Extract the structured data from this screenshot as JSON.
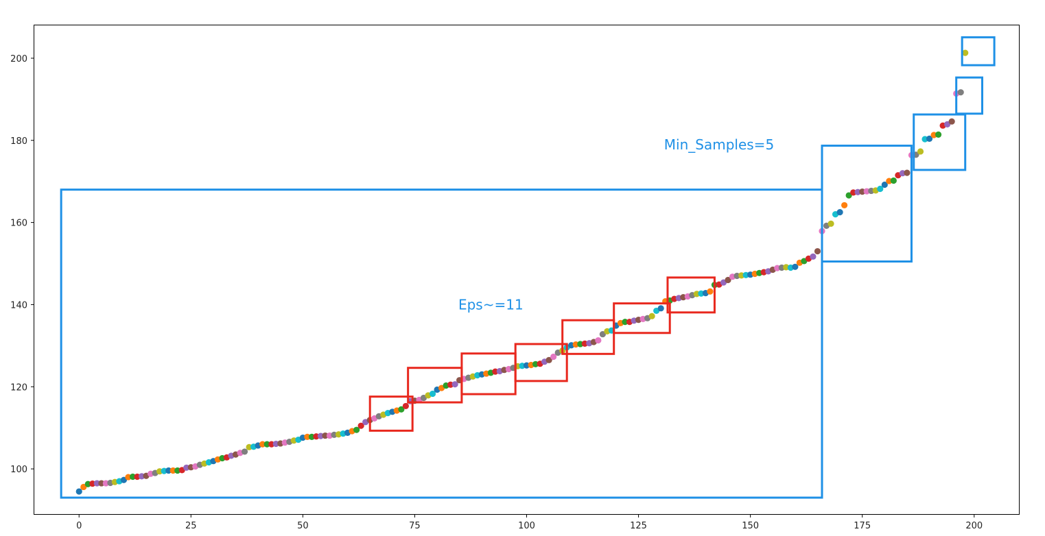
{
  "chart_data": {
    "type": "scatter",
    "title": "",
    "xlabel": "",
    "ylabel": "",
    "xlim": [
      -10,
      210
    ],
    "ylim": [
      89,
      208
    ],
    "xticks": [
      0,
      25,
      50,
      75,
      100,
      125,
      150,
      175,
      200
    ],
    "yticks": [
      100,
      120,
      140,
      160,
      180,
      200
    ],
    "grid": false,
    "palette": [
      "#1f77b4",
      "#ff7f0e",
      "#2ca02c",
      "#d62728",
      "#9467bd",
      "#8c564b",
      "#e377c2",
      "#7f7f7f",
      "#bcbd22",
      "#17becf"
    ],
    "y": [
      94.5,
      95.6,
      96.3,
      96.4,
      96.5,
      96.5,
      96.5,
      96.6,
      96.8,
      97.0,
      97.3,
      98.0,
      98.1,
      98.1,
      98.2,
      98.3,
      98.8,
      99.0,
      99.4,
      99.5,
      99.6,
      99.6,
      99.6,
      99.7,
      100.3,
      100.4,
      100.6,
      101.0,
      101.3,
      101.6,
      101.9,
      102.3,
      102.6,
      102.8,
      103.2,
      103.5,
      103.9,
      104.2,
      105.3,
      105.4,
      105.7,
      106.0,
      106.0,
      106.0,
      106.1,
      106.2,
      106.4,
      106.6,
      106.9,
      107.1,
      107.6,
      107.8,
      107.8,
      107.9,
      108.0,
      108.1,
      108.1,
      108.3,
      108.4,
      108.6,
      108.8,
      109.2,
      109.5,
      110.5,
      111.4,
      111.9,
      112.3,
      112.8,
      113.2,
      113.6,
      113.9,
      114.2,
      114.5,
      115.3,
      116.5,
      116.6,
      116.8,
      117.3,
      117.9,
      118.3,
      119.3,
      119.7,
      120.3,
      120.5,
      120.6,
      121.6,
      121.9,
      122.2,
      122.5,
      122.8,
      123.0,
      123.2,
      123.4,
      123.7,
      123.8,
      124.1,
      124.3,
      124.6,
      125.0,
      125.1,
      125.2,
      125.3,
      125.5,
      125.6,
      126.1,
      126.5,
      127.3,
      128.3,
      128.8,
      129.6,
      130.1,
      130.3,
      130.4,
      130.5,
      130.6,
      130.9,
      131.3,
      132.8,
      133.5,
      133.7,
      134.9,
      135.5,
      135.8,
      135.8,
      136.1,
      136.3,
      136.5,
      136.7,
      137.2,
      138.5,
      139.1,
      140.8,
      141.0,
      141.4,
      141.6,
      141.8,
      142.0,
      142.3,
      142.6,
      142.7,
      142.8,
      143.2,
      144.8,
      144.9,
      145.4,
      146.0,
      146.8,
      147.0,
      147.1,
      147.2,
      147.3,
      147.5,
      147.7,
      147.9,
      148.1,
      148.5,
      148.9,
      149.0,
      149.1,
      149.0,
      149.2,
      150.2,
      150.6,
      151.2,
      151.7,
      153.0,
      157.9,
      159.2,
      159.7,
      162.0,
      162.5,
      164.2,
      166.6,
      167.3,
      167.4,
      167.5,
      167.6,
      167.7,
      167.8,
      168.2,
      169.2,
      170.1,
      170.2,
      171.5,
      172.0,
      172.1,
      176.4,
      176.5,
      177.3,
      180.3,
      180.4,
      181.3,
      181.4,
      183.6,
      183.9,
      184.6,
      191.4,
      191.7,
      201.3
    ]
  },
  "annotations": [
    {
      "text": "Eps~=11",
      "x": 92,
      "y": 140
    },
    {
      "text": "Min_Samples=5",
      "x": 143,
      "y": 179
    }
  ],
  "blue_boxes": [
    {
      "x0": -4,
      "x1": 166,
      "y0": 93,
      "y1": 168
    },
    {
      "x0": 166,
      "x1": 186,
      "y0": 150.5,
      "y1": 178.7
    },
    {
      "x0": 186.5,
      "x1": 198,
      "y0": 172.8,
      "y1": 186.3
    },
    {
      "x0": 196,
      "x1": 201.8,
      "y0": 186.5,
      "y1": 195.3
    },
    {
      "x0": 197.3,
      "x1": 204.5,
      "y0": 198.3,
      "y1": 205.1
    }
  ],
  "red_boxes": [
    {
      "x0": 65,
      "x1": 74.5,
      "y0": 109.3,
      "y1": 117.6
    },
    {
      "x0": 73.5,
      "x1": 85.5,
      "y0": 116.2,
      "y1": 124.6
    },
    {
      "x0": 85.5,
      "x1": 97.5,
      "y0": 118.2,
      "y1": 128.1
    },
    {
      "x0": 97.5,
      "x1": 109,
      "y0": 121.4,
      "y1": 130.4
    },
    {
      "x0": 108,
      "x1": 119.5,
      "y0": 128.0,
      "y1": 136.2
    },
    {
      "x0": 119.5,
      "x1": 132,
      "y0": 133.1,
      "y1": 140.3
    },
    {
      "x0": 131.5,
      "x1": 142,
      "y0": 138.1,
      "y1": 146.6
    }
  ],
  "colors": {
    "blue_box": "#1e90e6",
    "red_box": "#e8281e"
  }
}
